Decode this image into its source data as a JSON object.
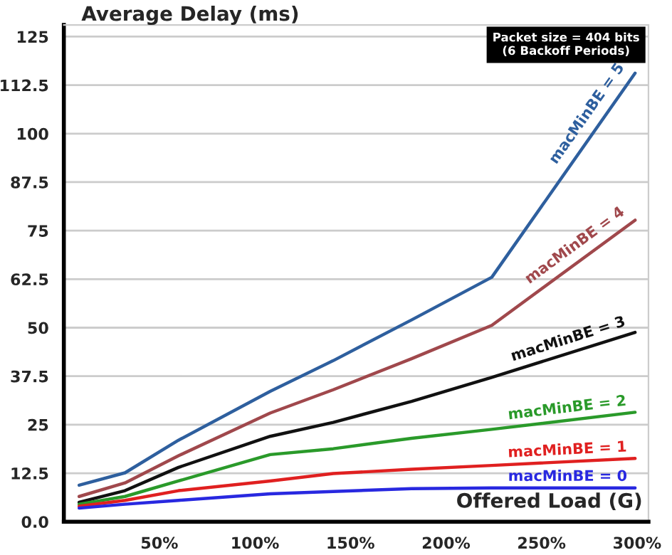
{
  "chart_data": {
    "type": "line",
    "title": "Average Delay (ms)",
    "xlabel": "Offered Load (G)",
    "annotations": [
      "Packet size = 404 bits\n(6 Backoff Periods)"
    ],
    "xlim": [
      0,
      306
    ],
    "ylim": [
      0,
      128
    ],
    "xticks": [
      {
        "value": 50,
        "label": "50%"
      },
      {
        "value": 100,
        "label": "100%"
      },
      {
        "value": 150,
        "label": "150%"
      },
      {
        "value": 200,
        "label": "200%"
      },
      {
        "value": 250,
        "label": "250%"
      },
      {
        "value": 300,
        "label": "300%"
      }
    ],
    "yticks": [
      {
        "value": 0,
        "label": "0.0"
      },
      12.5,
      25,
      37.5,
      50,
      62.5,
      75,
      87.5,
      100,
      112.5,
      125
    ],
    "grid": "y",
    "legend": false,
    "marker": "none",
    "line_style": "solid",
    "x": [
      8,
      32,
      60,
      108,
      141,
      182,
      224,
      299
    ],
    "series": [
      {
        "name": "macMinBE = 5",
        "color": "#2e5f9e",
        "values": [
          9.4,
          12.6,
          21,
          33.6,
          41.5,
          52,
          63,
          115.6
        ]
      },
      {
        "name": "macMinBE = 4",
        "color": "#a0484c",
        "values": [
          6.5,
          10,
          17,
          28,
          34,
          42,
          50.6,
          77.7
        ]
      },
      {
        "name": "macMinBE = 3",
        "color": "#111111",
        "values": [
          5,
          8,
          14,
          22,
          25.6,
          31,
          37.2,
          48.8
        ]
      },
      {
        "name": "macMinBE = 2",
        "color": "#2a9a2a",
        "values": [
          4.5,
          6.5,
          10.5,
          17.3,
          18.8,
          21.5,
          23.8,
          28.2
        ]
      },
      {
        "name": "macMinBE = 1",
        "color": "#e02020",
        "values": [
          4,
          5.5,
          8,
          10.5,
          12.4,
          13.5,
          14.5,
          16.3
        ]
      },
      {
        "name": "macMinBE = 0",
        "color": "#2828e0",
        "values": [
          3.5,
          4.5,
          5.5,
          7.2,
          7.8,
          8.5,
          8.7,
          8.7
        ]
      }
    ]
  }
}
